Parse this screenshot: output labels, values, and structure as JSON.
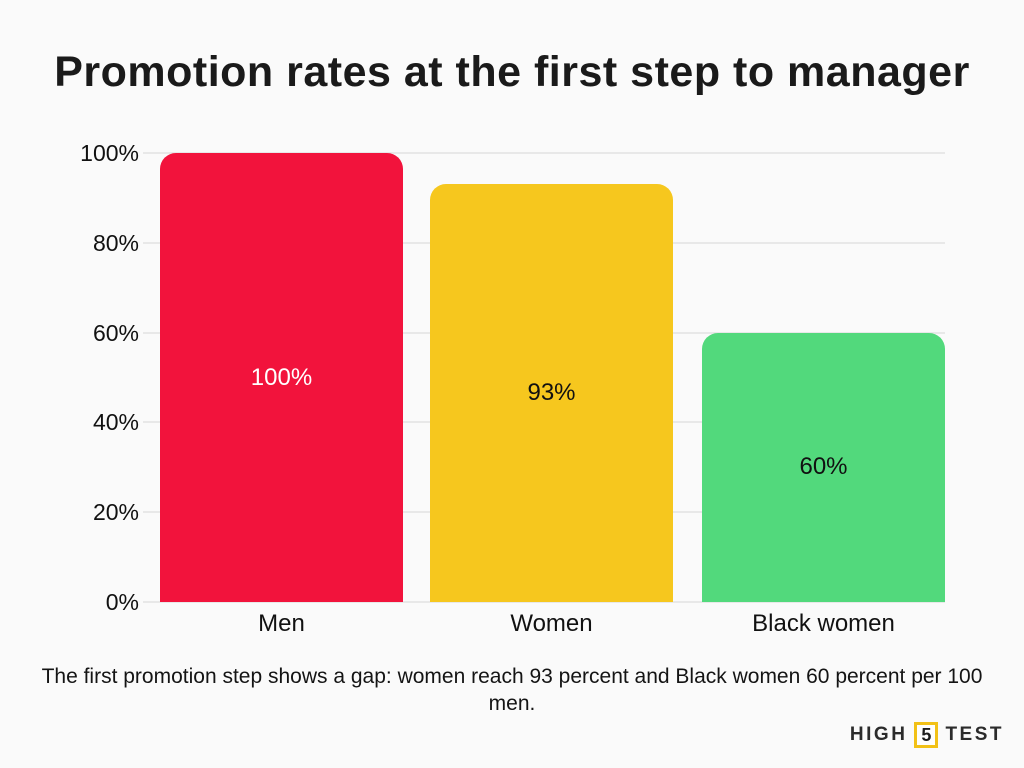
{
  "page": {
    "background": "#fafafa"
  },
  "title": "Promotion rates at the first step to manager",
  "chart_data": {
    "type": "bar",
    "title": "Promotion rates at the first step to manager",
    "categories": [
      "Men",
      "Women",
      "Black women"
    ],
    "values": [
      100,
      93,
      60
    ],
    "value_labels": [
      "100%",
      "93%",
      "60%"
    ],
    "bar_colors": [
      "#f2133c",
      "#f6c71e",
      "#52d97c"
    ],
    "value_label_colors": [
      "#ffffff",
      "#111111",
      "#111111"
    ],
    "xlabel": "",
    "ylabel": "",
    "ylim": [
      0,
      100
    ],
    "ytick_values": [
      100,
      80,
      60,
      40,
      20,
      0
    ],
    "ytick_labels": [
      "100%",
      "80%",
      "60%",
      "40%",
      "20%",
      "0%"
    ],
    "grid": true,
    "gridline_color": "#e8e8e8",
    "legend": "none"
  },
  "caption": "The first promotion step shows a gap: women reach 93 percent and Black women 60 percent per 100 men.",
  "logo": {
    "part1": "HIGH",
    "number": "5",
    "part2": "TEST",
    "accent_color": "#f2c117",
    "text_color": "#2b2b2b"
  }
}
